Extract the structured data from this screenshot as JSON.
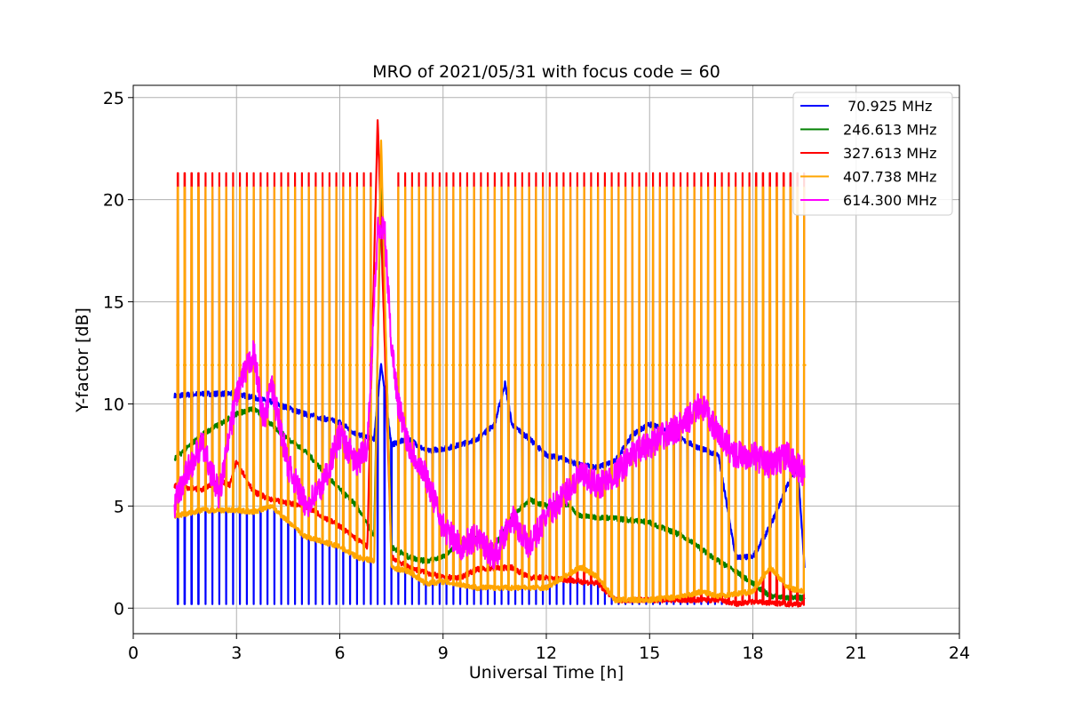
{
  "chart_data": {
    "type": "line",
    "title": "MRO of 2021/05/31 with focus code = 60",
    "xlabel": "Universal Time [h]",
    "ylabel": "Y-factor [dB]",
    "xlim": [
      0,
      24
    ],
    "ylim": [
      -1.25,
      25.6
    ],
    "xticks": [
      "0",
      "3",
      "6",
      "9",
      "12",
      "15",
      "18",
      "21",
      "24"
    ],
    "yticks": [
      "0",
      "5",
      "10",
      "15",
      "20",
      "25"
    ],
    "grid": true,
    "legend_position": "top-right",
    "series": [
      {
        "name": " 70.925 MHz",
        "color": "#0000ff",
        "x": [
          1.2,
          2,
          3,
          4,
          5,
          5.5,
          6,
          6.5,
          7,
          7.2,
          7.5,
          8,
          8.5,
          9,
          9.5,
          10,
          10.5,
          10.8,
          11,
          11.5,
          12,
          12.5,
          13,
          13.5,
          14,
          14.5,
          15,
          15.5,
          16,
          16.5,
          17,
          17.5,
          18,
          18.5,
          19,
          19.3,
          19.5
        ],
        "values": [
          10.4,
          10.5,
          10.5,
          10.1,
          9.5,
          9.3,
          9.1,
          8.5,
          8.3,
          12.0,
          8.0,
          8.3,
          7.7,
          7.8,
          8.0,
          8.3,
          9.0,
          11.0,
          9.0,
          8.3,
          7.5,
          7.3,
          7.0,
          6.9,
          7.2,
          8.5,
          9.0,
          8.7,
          8.2,
          7.8,
          7.5,
          2.5,
          2.5,
          4.0,
          6.0,
          7.0,
          2.0
        ],
        "pulse_period_h": 0.2,
        "pulse_floor": 0.2
      },
      {
        "name": "246.613 MHz",
        "color": "#008000",
        "x": [
          1.2,
          2,
          3,
          3.5,
          4,
          4.5,
          5,
          6,
          6.5,
          7,
          7.2,
          7.5,
          8,
          8.5,
          9,
          9.5,
          10,
          10.5,
          11,
          11.5,
          12,
          12.5,
          13,
          14,
          15,
          16,
          17,
          17.5,
          18,
          18.5,
          19,
          19.5
        ],
        "values": [
          7.3,
          8.5,
          9.5,
          9.8,
          9.0,
          8.3,
          7.7,
          5.8,
          5.0,
          3.5,
          21.5,
          3.0,
          2.5,
          2.3,
          2.5,
          3.2,
          3.4,
          3.0,
          4.5,
          5.3,
          5.0,
          5.2,
          4.5,
          4.4,
          4.2,
          3.5,
          2.3,
          1.8,
          1.2,
          0.6,
          0.5,
          0.5
        ]
      },
      {
        "name": "327.613 MHz",
        "color": "#ff0000",
        "x": [
          1.2,
          2,
          2.5,
          2.8,
          3,
          3.5,
          4,
          5,
          6,
          6.8,
          7.1,
          7.5,
          8,
          9,
          9.5,
          10,
          11,
          11.5,
          12,
          13,
          13.5,
          14,
          15,
          16,
          17,
          17.5,
          18,
          19,
          19.5
        ],
        "values": [
          6.0,
          5.8,
          6.3,
          6.0,
          7.2,
          5.7,
          5.3,
          5.0,
          4.0,
          3.0,
          24.0,
          2.5,
          2.0,
          1.5,
          1.5,
          1.9,
          2.0,
          1.5,
          1.5,
          1.3,
          1.2,
          0.4,
          0.4,
          0.4,
          0.4,
          0.2,
          0.3,
          0.2,
          0.2
        ],
        "peak_level": 21.3
      },
      {
        "name": "407.738 MHz",
        "color": "#ffa500",
        "x": [
          1.2,
          2,
          3,
          3.5,
          4,
          5,
          6,
          6.5,
          7,
          7.2,
          7.5,
          8,
          8.5,
          9,
          10,
          11,
          12,
          12.5,
          13,
          13.5,
          14,
          15,
          16,
          16.5,
          17,
          18,
          18.5,
          19,
          19.5
        ],
        "values": [
          4.5,
          4.8,
          4.8,
          4.7,
          5.0,
          3.5,
          3.0,
          2.5,
          2.3,
          23.0,
          2.0,
          1.8,
          1.2,
          1.3,
          1.0,
          1.0,
          1.0,
          1.5,
          2.0,
          1.5,
          0.4,
          0.4,
          0.6,
          0.8,
          0.6,
          0.8,
          2.0,
          1.0,
          0.8
        ],
        "peak_level": 20.6,
        "mid_level": 11.9
      },
      {
        "name": "614.300 MHz",
        "color": "#ff00ff",
        "x": [
          1.2,
          1.5,
          2,
          2.5,
          3,
          3.5,
          3.8,
          4,
          4.5,
          5,
          5.5,
          6,
          6.5,
          6.8,
          7.1,
          7.3,
          7.5,
          7.7,
          8,
          8.5,
          9,
          9.5,
          10,
          10.5,
          11,
          11.5,
          12,
          12.5,
          13,
          13.5,
          14,
          14.5,
          15,
          15.5,
          16,
          16.5,
          17,
          17.5,
          18,
          18.5,
          19,
          19.5
        ],
        "values": [
          5.0,
          6.5,
          8.0,
          5.5,
          10.5,
          12.5,
          9.0,
          11.0,
          7.0,
          5.0,
          6.0,
          8.5,
          7.0,
          8.0,
          18.5,
          18.5,
          13.0,
          10.0,
          8.0,
          6.5,
          4.0,
          3.0,
          3.5,
          2.5,
          4.5,
          3.0,
          4.5,
          5.5,
          6.5,
          6.0,
          6.5,
          7.5,
          8.0,
          8.5,
          9.0,
          10.0,
          8.5,
          7.5,
          7.5,
          7.0,
          7.5,
          6.5
        ]
      }
    ]
  }
}
